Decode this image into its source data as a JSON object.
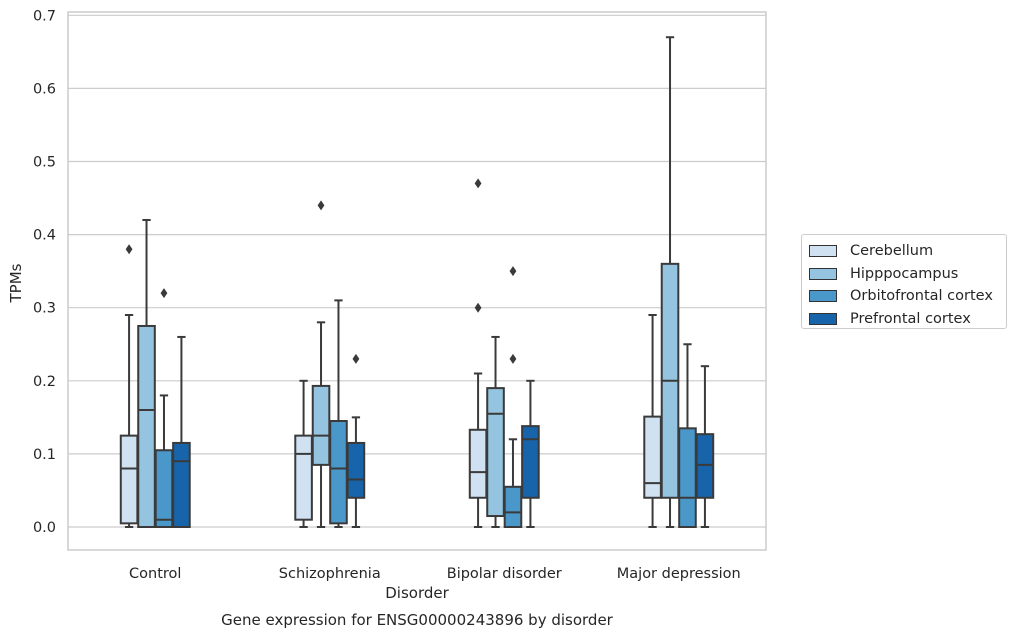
{
  "chart_data": {
    "type": "boxplot",
    "title": "Gene expression for ENSG00000243896 by disorder",
    "xlabel": "Disorder",
    "ylabel": "TPMs",
    "ylim": [
      -0.032,
      0.705
    ],
    "yticks": [
      "0.0",
      "0.1",
      "0.2",
      "0.3",
      "0.4",
      "0.5",
      "0.6",
      "0.7"
    ],
    "grid": true,
    "legend_position": "right",
    "categories": [
      "Control",
      "Schizophrenia",
      "Bipolar disorder",
      "Major depression"
    ],
    "series": [
      {
        "name": "Cerebellum",
        "color": "#d0e1f2",
        "boxes": [
          {
            "whislo": 0.0,
            "q1": 0.005,
            "med": 0.08,
            "q3": 0.125,
            "whishi": 0.29,
            "fliers": [
              0.38
            ]
          },
          {
            "whislo": 0.0,
            "q1": 0.01,
            "med": 0.1,
            "q3": 0.125,
            "whishi": 0.2,
            "fliers": []
          },
          {
            "whislo": 0.0,
            "q1": 0.04,
            "med": 0.075,
            "q3": 0.133,
            "whishi": 0.21,
            "fliers": [
              0.3,
              0.47
            ]
          },
          {
            "whislo": 0.0,
            "q1": 0.04,
            "med": 0.06,
            "q3": 0.151,
            "whishi": 0.29,
            "fliers": []
          }
        ]
      },
      {
        "name": "Hipppocampus",
        "color": "#94c4df",
        "boxes": [
          {
            "whislo": 0.0,
            "q1": 0.0,
            "med": 0.16,
            "q3": 0.275,
            "whishi": 0.42,
            "fliers": []
          },
          {
            "whislo": 0.0,
            "q1": 0.085,
            "med": 0.125,
            "q3": 0.193,
            "whishi": 0.28,
            "fliers": [
              0.44
            ]
          },
          {
            "whislo": 0.0,
            "q1": 0.015,
            "med": 0.155,
            "q3": 0.19,
            "whishi": 0.26,
            "fliers": []
          },
          {
            "whislo": 0.0,
            "q1": 0.04,
            "med": 0.2,
            "q3": 0.36,
            "whishi": 0.67,
            "fliers": []
          }
        ]
      },
      {
        "name": "Orbitofrontal cortex",
        "color": "#4a98c9",
        "boxes": [
          {
            "whislo": 0.0,
            "q1": 0.0,
            "med": 0.01,
            "q3": 0.105,
            "whishi": 0.18,
            "fliers": [
              0.32
            ]
          },
          {
            "whislo": 0.0,
            "q1": 0.005,
            "med": 0.08,
            "q3": 0.145,
            "whishi": 0.31,
            "fliers": []
          },
          {
            "whislo": 0.0,
            "q1": 0.0,
            "med": 0.02,
            "q3": 0.055,
            "whishi": 0.12,
            "fliers": [
              0.23,
              0.35
            ]
          },
          {
            "whislo": 0.0,
            "q1": 0.0,
            "med": 0.04,
            "q3": 0.135,
            "whishi": 0.25,
            "fliers": []
          }
        ]
      },
      {
        "name": "Prefrontal cortex",
        "color": "#1764ab",
        "boxes": [
          {
            "whislo": 0.0,
            "q1": 0.0,
            "med": 0.09,
            "q3": 0.115,
            "whishi": 0.26,
            "fliers": []
          },
          {
            "whislo": 0.0,
            "q1": 0.04,
            "med": 0.065,
            "q3": 0.115,
            "whishi": 0.15,
            "fliers": [
              0.23
            ]
          },
          {
            "whislo": 0.0,
            "q1": 0.04,
            "med": 0.12,
            "q3": 0.138,
            "whishi": 0.2,
            "fliers": []
          },
          {
            "whislo": 0.0,
            "q1": 0.04,
            "med": 0.085,
            "q3": 0.127,
            "whishi": 0.22,
            "fliers": []
          }
        ]
      }
    ]
  }
}
